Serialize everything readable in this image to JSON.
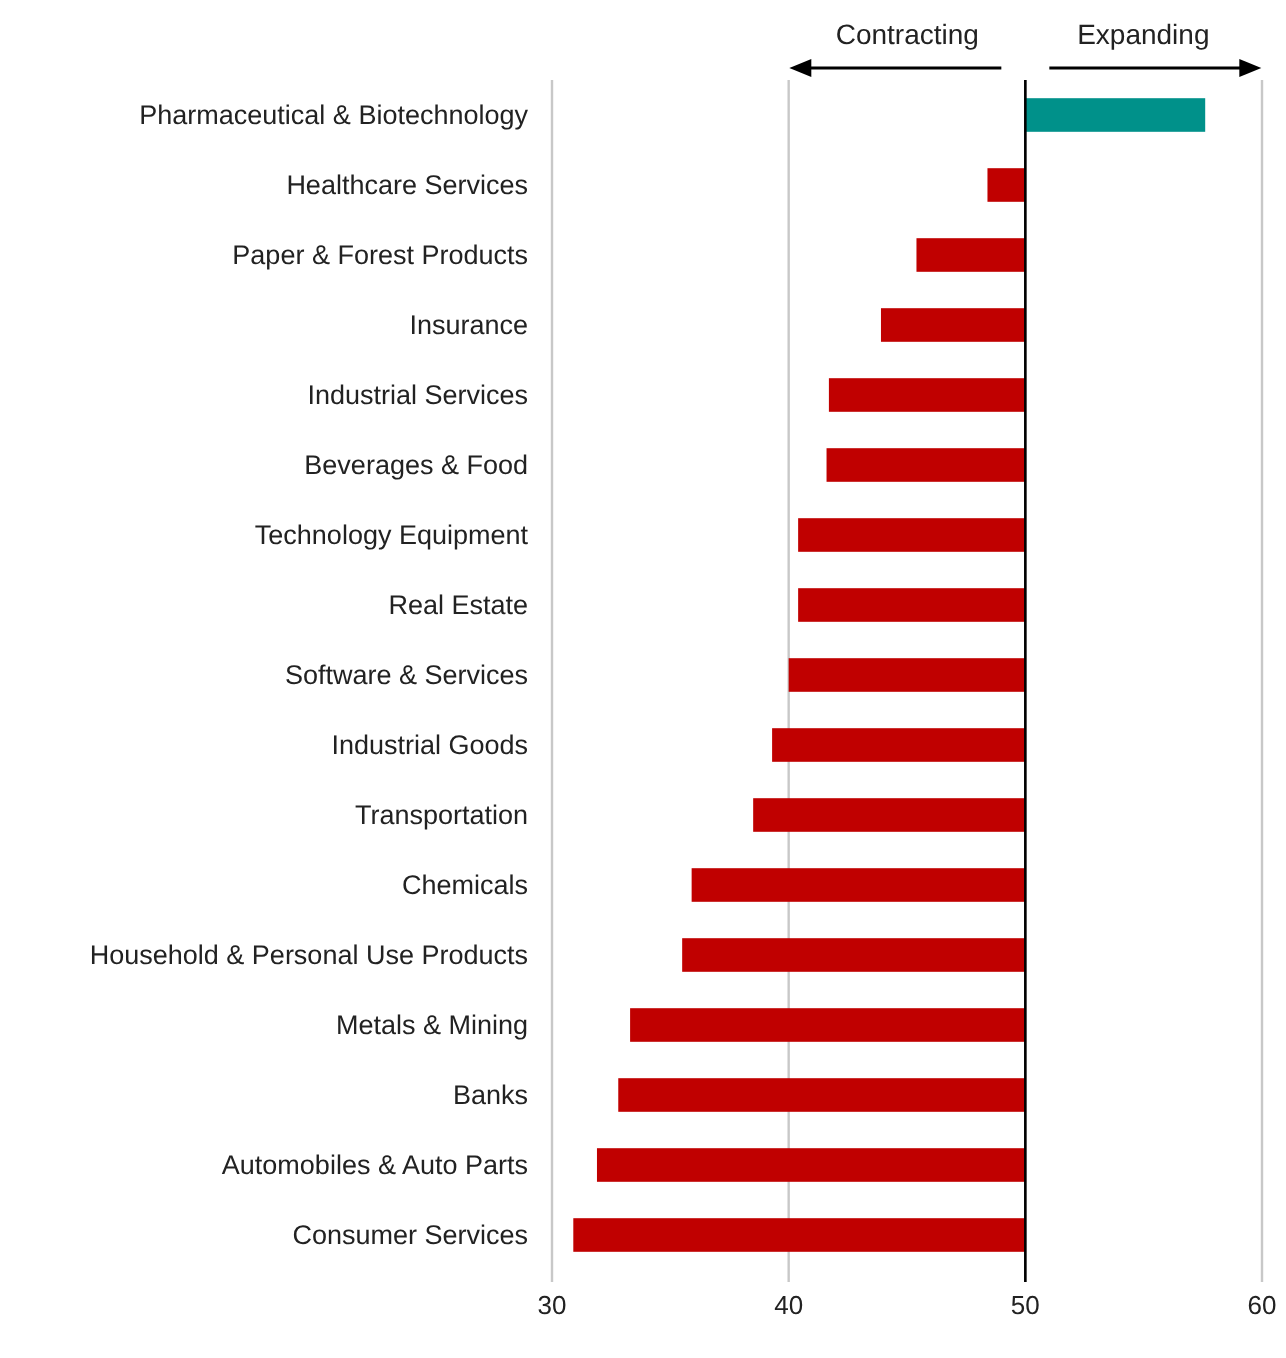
{
  "chart_data": {
    "type": "bar",
    "orientation": "horizontal",
    "categories": [
      "Pharmaceutical & Biotechnology",
      "Healthcare Services",
      "Paper & Forest Products",
      "Insurance",
      "Industrial Services",
      "Beverages & Food",
      "Technology Equipment",
      "Real Estate",
      "Software & Services",
      "Industrial Goods",
      "Transportation",
      "Chemicals",
      "Household & Personal Use Products",
      "Metals & Mining",
      "Banks",
      "Automobiles & Auto Parts",
      "Consumer Services"
    ],
    "base": [
      50,
      50,
      50,
      50,
      50,
      50,
      50,
      50,
      50,
      50,
      50,
      50,
      50,
      50,
      50,
      50,
      50
    ],
    "values": [
      7.6,
      -1.6,
      -4.6,
      -6.1,
      -8.3,
      -8.4,
      -9.6,
      -9.6,
      -10.0,
      -10.7,
      -11.5,
      -14.1,
      -14.5,
      -16.7,
      -17.2,
      -18.1,
      -19.1
    ],
    "colors": [
      "#00918a",
      "#c00000",
      "#c00000",
      "#c00000",
      "#c00000",
      "#c00000",
      "#c00000",
      "#c00000",
      "#c00000",
      "#c00000",
      "#c00000",
      "#c00000",
      "#c00000",
      "#c00000",
      "#c00000",
      "#c00000",
      "#c00000"
    ],
    "xlim": [
      30,
      60
    ],
    "xticks": [
      30,
      40,
      50,
      60
    ],
    "grid": "x",
    "ref_lines": [
      {
        "axis": "x",
        "value": 50,
        "color": "#000000"
      }
    ],
    "annotations": [
      "Contracting",
      "Expanding"
    ]
  }
}
